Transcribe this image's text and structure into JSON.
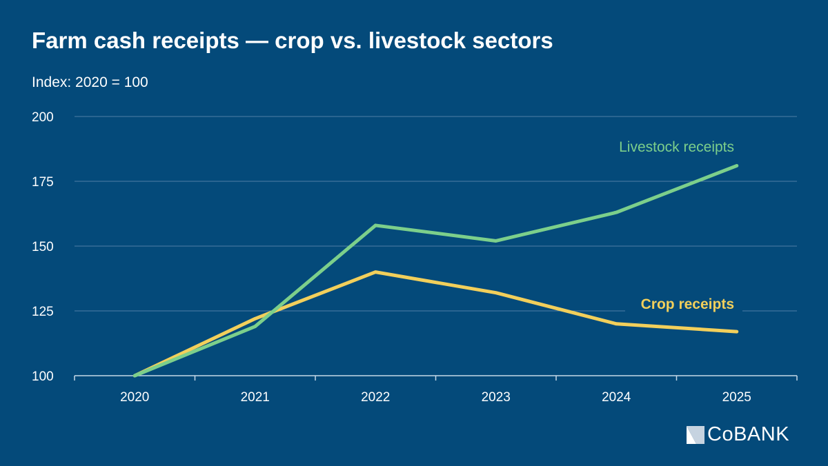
{
  "chart_data": {
    "type": "line",
    "title": "Farm cash receipts — crop vs. livestock sectors",
    "subtitle": "Index: 2020 = 100",
    "x": [
      "2020",
      "2021",
      "2022",
      "2023",
      "2024",
      "2025"
    ],
    "yticks": [
      "100",
      "125",
      "150",
      "175",
      "200"
    ],
    "ylim": [
      100,
      200
    ],
    "grid": "horizontal",
    "series": [
      {
        "name": "Livestock receipts",
        "values": [
          100,
          119,
          158,
          152,
          163,
          181
        ],
        "color": "#7ccf8b"
      },
      {
        "name": "Crop receipts",
        "values": [
          100,
          122,
          140,
          132,
          120,
          117
        ],
        "color": "#f2cf5b"
      }
    ]
  },
  "brand": {
    "logo_text": "CoBANK"
  },
  "colors": {
    "background": "#044a7a",
    "grid": "#4f7fa6",
    "axis": "#c7d9e8"
  }
}
